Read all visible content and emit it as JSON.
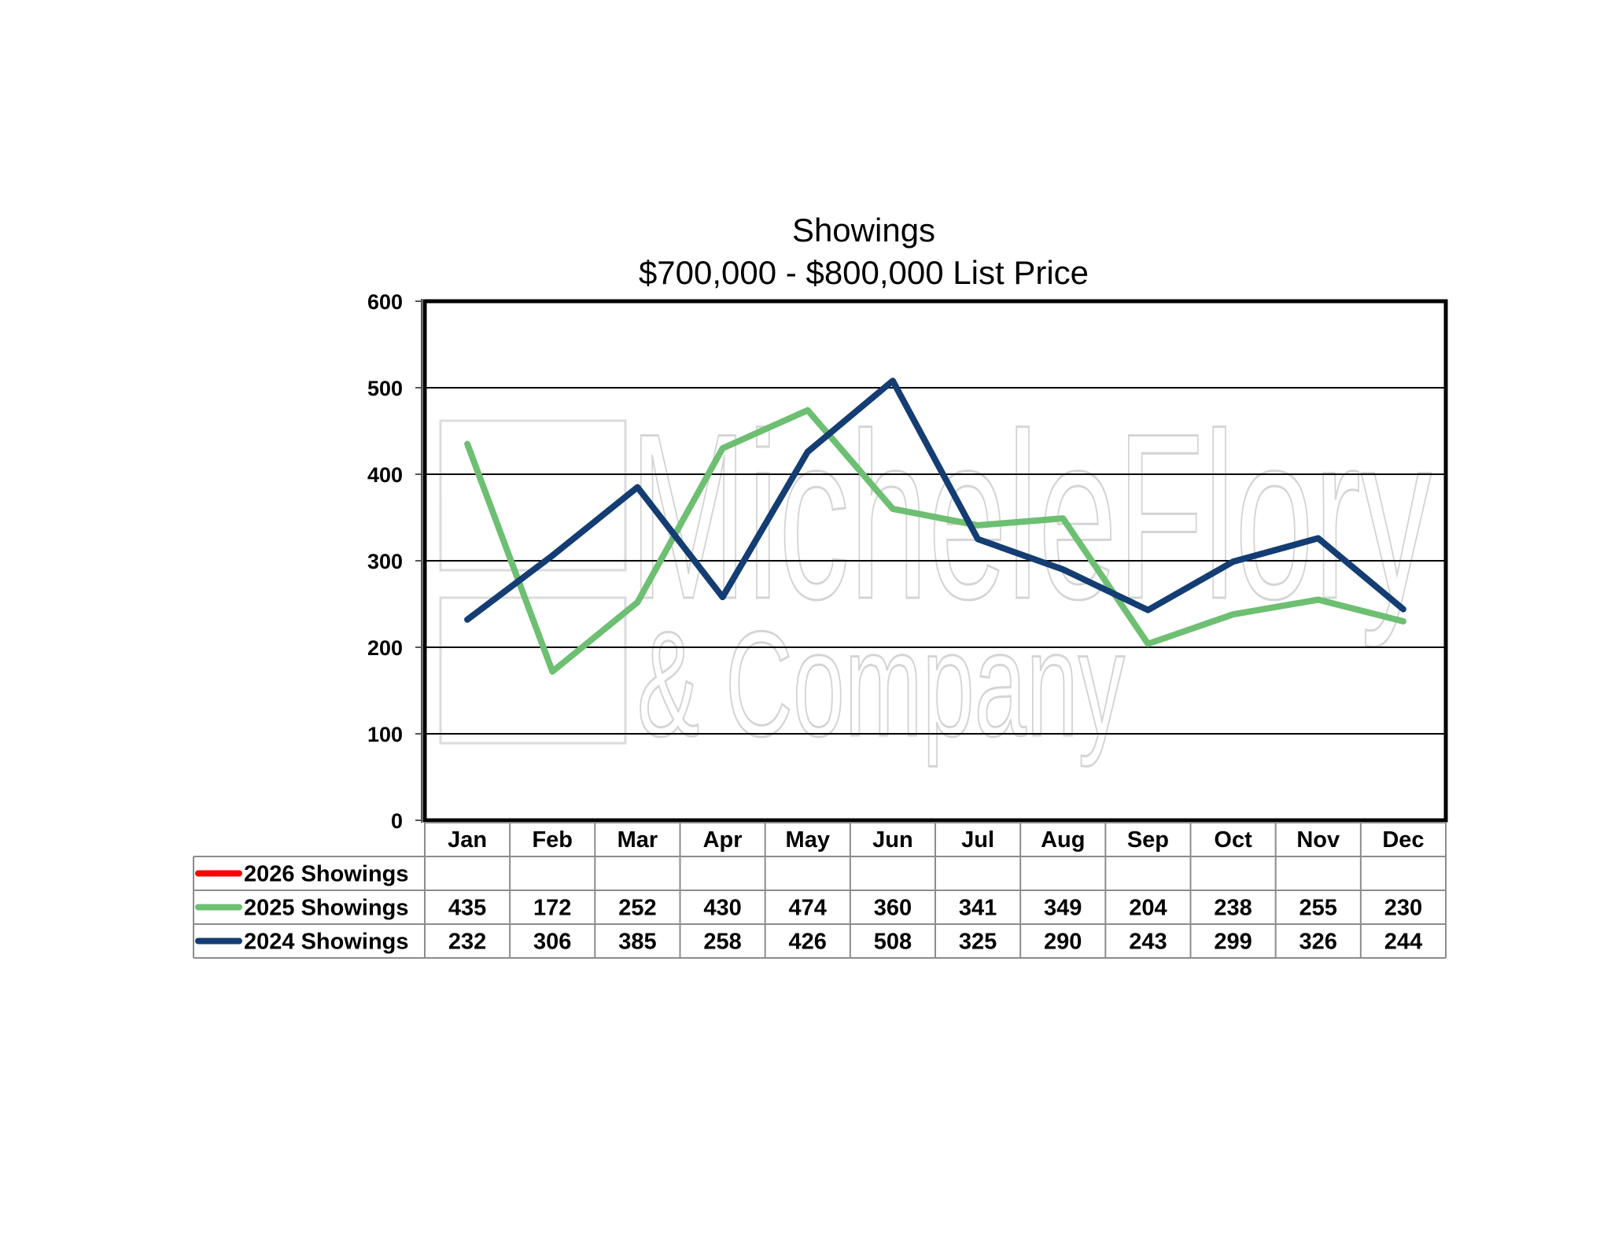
{
  "chart_data": {
    "type": "line",
    "title": "Showings",
    "subtitle": "$700,000 - $800,000 List Price",
    "categories": [
      "Jan",
      "Feb",
      "Mar",
      "Apr",
      "May",
      "Jun",
      "Jul",
      "Aug",
      "Sep",
      "Oct",
      "Nov",
      "Dec"
    ],
    "ylim": [
      0,
      600
    ],
    "yticks": [
      0,
      100,
      200,
      300,
      400,
      500,
      600
    ],
    "grid": true,
    "legend": "data-table-below",
    "series": [
      {
        "name": "2026 Showings",
        "color": "#ff0000",
        "values": [
          null,
          null,
          null,
          null,
          null,
          null,
          null,
          null,
          null,
          null,
          null,
          null
        ]
      },
      {
        "name": "2025 Showings",
        "color": "#6dbf72",
        "values": [
          435,
          172,
          252,
          430,
          474,
          360,
          341,
          349,
          204,
          238,
          255,
          230
        ]
      },
      {
        "name": "2024 Showings",
        "color": "#133d73",
        "values": [
          232,
          306,
          385,
          258,
          426,
          508,
          325,
          290,
          243,
          299,
          326,
          244
        ]
      }
    ]
  },
  "watermark": {
    "line1": "MicheleFlory",
    "line2": "& Company"
  }
}
